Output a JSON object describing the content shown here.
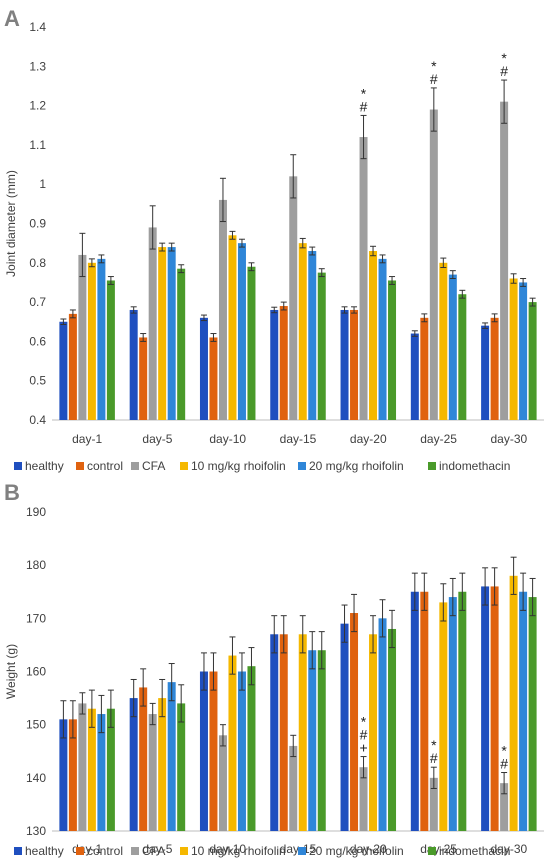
{
  "colors": {
    "healthy": "#1f4fbf",
    "control": "#e0620f",
    "CFA": "#9e9e9e",
    "10 mg/kg rhoifolin": "#f5b800",
    "20 mg/kg rhoifolin": "#2f86d8",
    "indomethacin": "#4a9a2a"
  },
  "chart_data": [
    {
      "panel": "A",
      "type": "bar",
      "ylabel": "Joint diameter (mm)",
      "ylim": [
        0.4,
        1.4
      ],
      "yticks": [
        "0.4",
        "0.5",
        "0.6",
        "0.7",
        "0.8",
        "0.9",
        "1",
        "1.1",
        "1.2",
        "1.3",
        "1.4"
      ],
      "categories": [
        "day-1",
        "day-5",
        "day-10",
        "day-15",
        "day-20",
        "day-25",
        "day-30"
      ],
      "legend": "bottom",
      "grid": false,
      "series": [
        {
          "name": "healthy",
          "values": [
            0.65,
            0.68,
            0.66,
            0.68,
            0.68,
            0.62,
            0.64
          ],
          "errors": [
            0.007,
            0.008,
            0.007,
            0.007,
            0.008,
            0.007,
            0.007
          ]
        },
        {
          "name": "control",
          "values": [
            0.67,
            0.61,
            0.61,
            0.69,
            0.68,
            0.66,
            0.66
          ],
          "errors": [
            0.01,
            0.01,
            0.01,
            0.01,
            0.008,
            0.01,
            0.01
          ]
        },
        {
          "name": "CFA",
          "values": [
            0.82,
            0.89,
            0.96,
            1.02,
            1.12,
            1.19,
            1.21
          ],
          "errors": [
            0.055,
            0.055,
            0.055,
            0.055,
            0.055,
            0.055,
            0.055
          ]
        },
        {
          "name": "10 mg/kg rhoifolin",
          "values": [
            0.8,
            0.84,
            0.87,
            0.85,
            0.83,
            0.8,
            0.76
          ],
          "errors": [
            0.01,
            0.01,
            0.01,
            0.012,
            0.012,
            0.012,
            0.012
          ]
        },
        {
          "name": "20 mg/kg rhoifolin",
          "values": [
            0.81,
            0.84,
            0.85,
            0.83,
            0.81,
            0.77,
            0.75
          ],
          "errors": [
            0.01,
            0.01,
            0.01,
            0.01,
            0.01,
            0.01,
            0.01
          ]
        },
        {
          "name": "indomethacin",
          "values": [
            0.755,
            0.785,
            0.79,
            0.775,
            0.755,
            0.72,
            0.7
          ],
          "errors": [
            0.01,
            0.01,
            0.01,
            0.01,
            0.01,
            0.01,
            0.01
          ]
        }
      ],
      "annotations": [
        {
          "category": "day-20",
          "series": "CFA",
          "lines": [
            "*",
            "#"
          ]
        },
        {
          "category": "day-25",
          "series": "CFA",
          "lines": [
            "*",
            "#"
          ]
        },
        {
          "category": "day-30",
          "series": "CFA",
          "lines": [
            "*",
            "#"
          ]
        }
      ]
    },
    {
      "panel": "B",
      "type": "bar",
      "ylabel": "Weight (g)",
      "ylim": [
        130,
        190
      ],
      "yticks": [
        "130",
        "140",
        "150",
        "160",
        "170",
        "180",
        "190"
      ],
      "categories": [
        "day-1",
        "day-5",
        "day-10",
        "day-15",
        "day-20",
        "day-25",
        "day-30"
      ],
      "legend": "bottom",
      "grid": false,
      "series": [
        {
          "name": "healthy",
          "values": [
            151,
            155,
            160,
            167,
            169,
            175,
            176
          ],
          "errors": [
            3.5,
            3.5,
            3.5,
            3.5,
            3.5,
            3.5,
            3.5
          ]
        },
        {
          "name": "control",
          "values": [
            151,
            157,
            160,
            167,
            171,
            175,
            176
          ],
          "errors": [
            3.5,
            3.5,
            3.5,
            3.5,
            3.5,
            3.5,
            3.5
          ]
        },
        {
          "name": "CFA",
          "values": [
            154,
            152,
            148,
            146,
            142,
            140,
            139
          ],
          "errors": [
            2,
            2,
            2,
            2,
            2,
            2,
            2
          ]
        },
        {
          "name": "10 mg/kg rhoifolin",
          "values": [
            153,
            155,
            163,
            167,
            167,
            173,
            178
          ],
          "errors": [
            3.5,
            3.5,
            3.5,
            3.5,
            3.5,
            3.5,
            3.5
          ]
        },
        {
          "name": "20 mg/kg rhoifolin",
          "values": [
            152,
            158,
            160,
            164,
            170,
            174,
            175
          ],
          "errors": [
            3.5,
            3.5,
            3.5,
            3.5,
            3.5,
            3.5,
            3.5
          ]
        },
        {
          "name": "indomethacin",
          "values": [
            153,
            154,
            161,
            164,
            168,
            175,
            174
          ],
          "errors": [
            3.5,
            3.5,
            3.5,
            3.5,
            3.5,
            3.5,
            3.5
          ]
        }
      ],
      "annotations": [
        {
          "category": "day-20",
          "series": "CFA",
          "lines": [
            "*",
            "#",
            "+"
          ]
        },
        {
          "category": "day-25",
          "series": "CFA",
          "lines": [
            "*",
            "#"
          ]
        },
        {
          "category": "day-30",
          "series": "CFA",
          "lines": [
            "*",
            "#"
          ]
        }
      ]
    }
  ]
}
